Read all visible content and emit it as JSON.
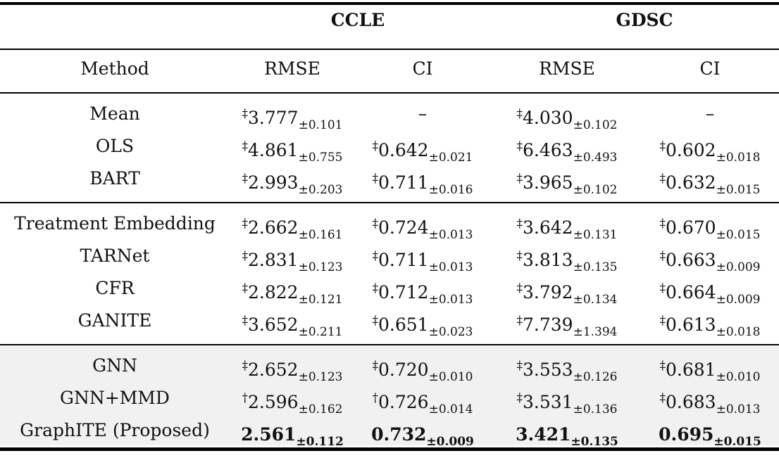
{
  "groups": [
    "CCLE",
    "GDSC"
  ],
  "columns": [
    "Method",
    "RMSE",
    "CI",
    "RMSE",
    "CI"
  ],
  "sections": [
    {
      "shaded": false,
      "rows": [
        {
          "method": "Mean",
          "cells": [
            {
              "mark": "‡",
              "mean": "3.777",
              "sd": "±0.101"
            },
            {
              "dash": "–"
            },
            {
              "mark": "‡",
              "mean": "4.030",
              "sd": "±0.102"
            },
            {
              "dash": "–"
            }
          ]
        },
        {
          "method": "OLS",
          "cells": [
            {
              "mark": "‡",
              "mean": "4.861",
              "sd": "±0.755"
            },
            {
              "mark": "‡",
              "mean": "0.642",
              "sd": "±0.021"
            },
            {
              "mark": "‡",
              "mean": "6.463",
              "sd": "±0.493"
            },
            {
              "mark": "‡",
              "mean": "0.602",
              "sd": "±0.018"
            }
          ]
        },
        {
          "method": "BART",
          "cells": [
            {
              "mark": "‡",
              "mean": "2.993",
              "sd": "±0.203"
            },
            {
              "mark": "‡",
              "mean": "0.711",
              "sd": "±0.016"
            },
            {
              "mark": "‡",
              "mean": "3.965",
              "sd": "±0.102"
            },
            {
              "mark": "‡",
              "mean": "0.632",
              "sd": "±0.015"
            }
          ]
        }
      ]
    },
    {
      "shaded": false,
      "rows": [
        {
          "method": "Treatment Embedding",
          "cells": [
            {
              "mark": "‡",
              "mean": "2.662",
              "sd": "±0.161"
            },
            {
              "mark": "‡",
              "mean": "0.724",
              "sd": "±0.013"
            },
            {
              "mark": "‡",
              "mean": "3.642",
              "sd": "±0.131"
            },
            {
              "mark": "‡",
              "mean": "0.670",
              "sd": "±0.015"
            }
          ]
        },
        {
          "method": "TARNet",
          "cells": [
            {
              "mark": "‡",
              "mean": "2.831",
              "sd": "±0.123"
            },
            {
              "mark": "‡",
              "mean": "0.711",
              "sd": "±0.013"
            },
            {
              "mark": "‡",
              "mean": "3.813",
              "sd": "±0.135"
            },
            {
              "mark": "‡",
              "mean": "0.663",
              "sd": "±0.009"
            }
          ]
        },
        {
          "method": "CFR",
          "cells": [
            {
              "mark": "‡",
              "mean": "2.822",
              "sd": "±0.121"
            },
            {
              "mark": "‡",
              "mean": "0.712",
              "sd": "±0.013"
            },
            {
              "mark": "‡",
              "mean": "3.792",
              "sd": "±0.134"
            },
            {
              "mark": "‡",
              "mean": "0.664",
              "sd": "±0.009"
            }
          ]
        },
        {
          "method": "GANITE",
          "cells": [
            {
              "mark": "‡",
              "mean": "3.652",
              "sd": "±0.211"
            },
            {
              "mark": "‡",
              "mean": "0.651",
              "sd": "±0.023"
            },
            {
              "mark": "‡",
              "mean": "7.739",
              "sd": "±1.394"
            },
            {
              "mark": "‡",
              "mean": "0.613",
              "sd": "±0.018"
            }
          ]
        }
      ]
    },
    {
      "shaded": true,
      "rows": [
        {
          "method": "GNN",
          "cells": [
            {
              "mark": "‡",
              "mean": "2.652",
              "sd": "±0.123"
            },
            {
              "mark": "‡",
              "mean": "0.720",
              "sd": "±0.010"
            },
            {
              "mark": "‡",
              "mean": "3.553",
              "sd": "±0.126"
            },
            {
              "mark": "‡",
              "mean": "0.681",
              "sd": "±0.010"
            }
          ]
        },
        {
          "method": "GNN+MMD",
          "cells": [
            {
              "mark": "†",
              "mean": "2.596",
              "sd": "±0.162"
            },
            {
              "mark": "†",
              "mean": "0.726",
              "sd": "±0.014"
            },
            {
              "mark": "‡",
              "mean": "3.531",
              "sd": "±0.136"
            },
            {
              "mark": "‡",
              "mean": "0.683",
              "sd": "±0.013"
            }
          ]
        },
        {
          "method": "GraphITE (Proposed)",
          "bold": true,
          "cells": [
            {
              "mark": "",
              "mean": "2.561",
              "sd": "±0.112"
            },
            {
              "mark": "",
              "mean": "0.732",
              "sd": "±0.009"
            },
            {
              "mark": "",
              "mean": "3.421",
              "sd": "±0.135"
            },
            {
              "mark": "",
              "mean": "0.695",
              "sd": "±0.015"
            }
          ]
        }
      ]
    }
  ],
  "colors": {
    "shade": "#f1f1f1",
    "rule": "#000000"
  }
}
